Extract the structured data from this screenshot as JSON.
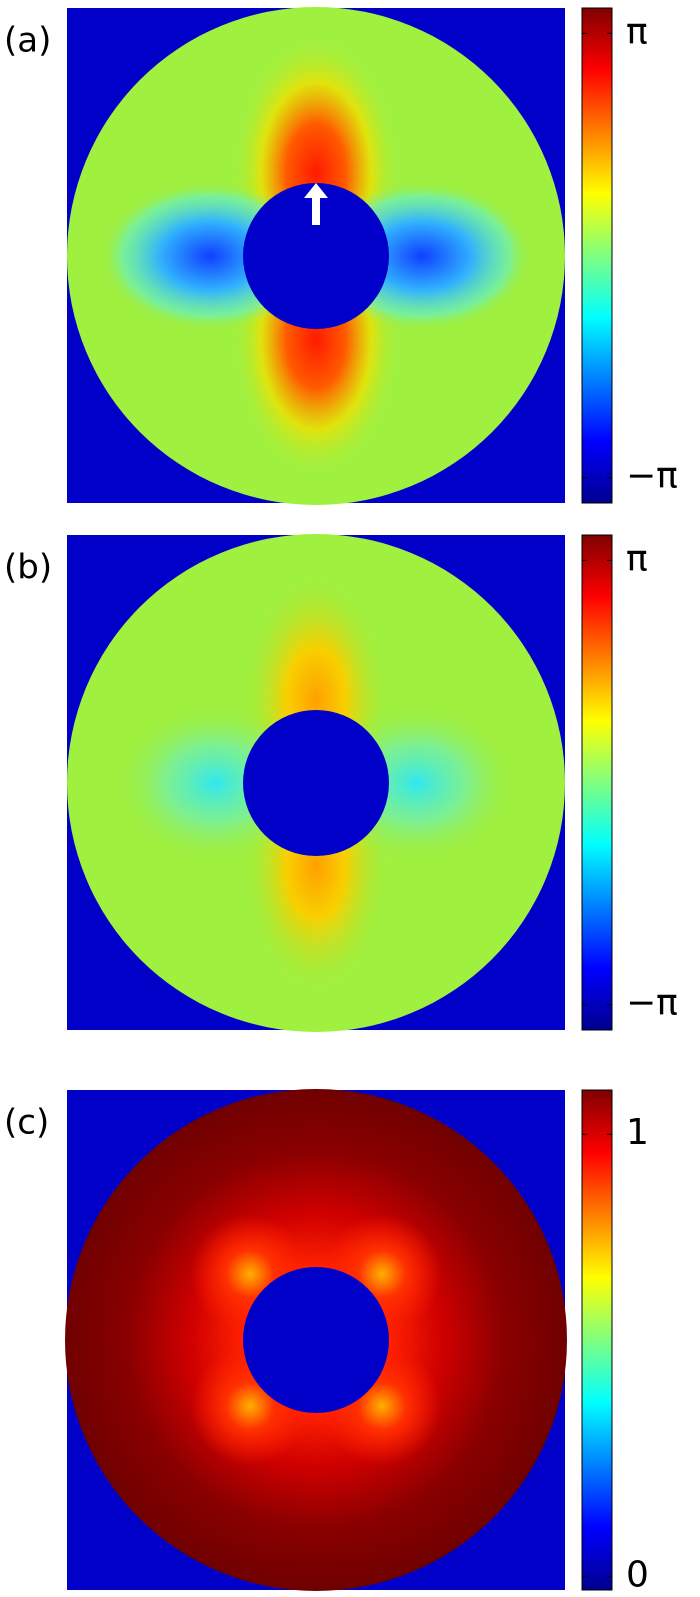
{
  "chart_data": [
    {
      "type": "heatmap",
      "title": "(a)",
      "colorbar": {
        "lim": [
          -3.5,
          3.5
        ],
        "ticks": [
          {
            "value": 3.14159,
            "label": "π"
          },
          {
            "value": -3.14159,
            "label": "−π"
          }
        ],
        "colormap": "jet"
      }
    },
    {
      "type": "heatmap",
      "title": "(b)",
      "colorbar": {
        "lim": [
          -3.5,
          3.5
        ],
        "ticks": [
          {
            "value": 3.14159,
            "label": "π"
          },
          {
            "value": -3.14159,
            "label": "−π"
          }
        ],
        "colormap": "jet"
      }
    },
    {
      "type": "heatmap",
      "title": "(c)",
      "colorbar": {
        "lim": [
          -0.03,
          1.1
        ],
        "ticks": [
          1,
          0
        ],
        "colormap": "jet"
      }
    }
  ]
}
